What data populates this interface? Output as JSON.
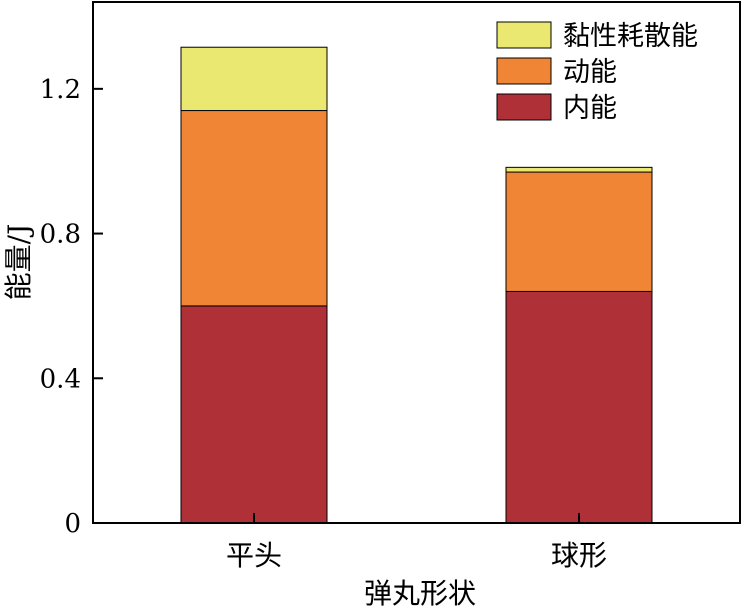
{
  "chart_data": {
    "type": "bar",
    "stacked": true,
    "categories": [
      "平头",
      "球形"
    ],
    "series": [
      {
        "name": "内能",
        "values": [
          0.6,
          0.64
        ],
        "color": "#B03038"
      },
      {
        "name": "动能",
        "values": [
          0.54,
          0.33
        ],
        "color": "#F08535"
      },
      {
        "name": "黏性耗散能",
        "values": [
          0.175,
          0.013
        ],
        "color": "#EBE872"
      }
    ],
    "title": "",
    "xlabel": "弹丸形状",
    "ylabel": "能量/J",
    "ylim": [
      0,
      1.44
    ],
    "yticks": [
      0,
      0.4,
      0.8,
      1.2
    ],
    "ytick_labels": [
      "0",
      "0.4",
      "0.8",
      "1.2"
    ],
    "grid": false,
    "legend": "top-right",
    "legend_order": [
      "黏性耗散能",
      "动能",
      "内能"
    ]
  }
}
